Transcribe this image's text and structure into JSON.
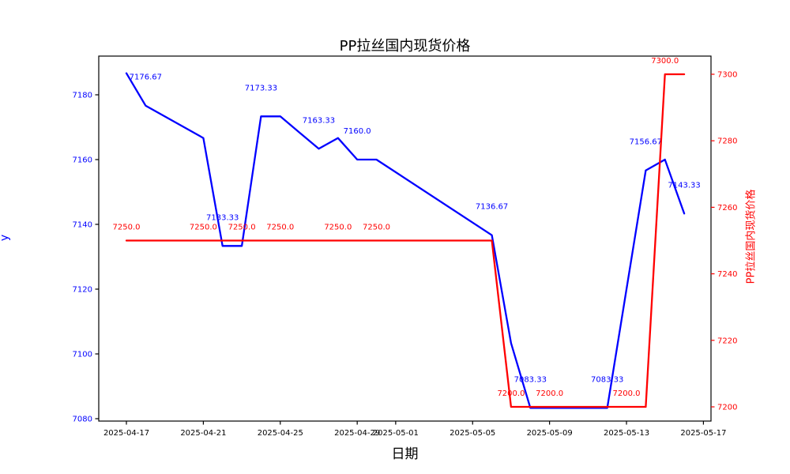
{
  "chart_data": {
    "type": "line",
    "title": "PP拉丝国内现货价格",
    "xlabel": "日期",
    "grid": false,
    "legend": "none",
    "x_axis": {
      "base_date": "2025-04-17",
      "range_days": [
        -1.4376,
        30.394
      ],
      "ticks": [
        {
          "date": "2025-04-17",
          "label": "2025-04-17"
        },
        {
          "date": "2025-04-21",
          "label": "2025-04-21"
        },
        {
          "date": "2025-04-25",
          "label": "2025-04-25"
        },
        {
          "date": "2025-04-29",
          "label": "2025-04-29"
        },
        {
          "date": "2025-05-01",
          "label": "2025-05-01"
        },
        {
          "date": "2025-05-05",
          "label": "2025-05-05"
        },
        {
          "date": "2025-05-09",
          "label": "2025-05-09"
        },
        {
          "date": "2025-05-13",
          "label": "2025-05-13"
        },
        {
          "date": "2025-05-17",
          "label": "2025-05-17"
        }
      ]
    },
    "left_axis": {
      "label": "y",
      "label_color": "#0000ff",
      "tick_color": "#000000",
      "tick_label_color": "#0000ff",
      "ticks": [
        7080,
        7100,
        7120,
        7140,
        7160,
        7180
      ],
      "range": [
        7079.268,
        7191.951
      ]
    },
    "right_axis": {
      "label": "PP拉丝国内现货价格",
      "label_color": "#ff0000",
      "tick_color": "#ff0000",
      "tick_label_color": "#ff0000",
      "ticks": [
        7200,
        7220,
        7240,
        7260,
        7280,
        7300
      ],
      "range": [
        7195.724,
        7305.463
      ]
    },
    "series": [
      {
        "name": "y",
        "axis": "left",
        "color": "#0000ff",
        "points": [
          {
            "date": "2025-04-17",
            "value": 7186.67
          },
          {
            "date": "2025-04-18",
            "value": 7176.67
          },
          {
            "date": "2025-04-21",
            "value": 7166.67
          },
          {
            "date": "2025-04-22",
            "value": 7133.33
          },
          {
            "date": "2025-04-23",
            "value": 7133.33
          },
          {
            "date": "2025-04-24",
            "value": 7173.33
          },
          {
            "date": "2025-04-25",
            "value": 7173.33
          },
          {
            "date": "2025-04-27",
            "value": 7163.33
          },
          {
            "date": "2025-04-28",
            "value": 7166.67
          },
          {
            "date": "2025-04-29",
            "value": 7160.0
          },
          {
            "date": "2025-04-30",
            "value": 7160.0
          },
          {
            "date": "2025-05-06",
            "value": 7136.67
          },
          {
            "date": "2025-05-07",
            "value": 7103.33
          },
          {
            "date": "2025-05-08",
            "value": 7083.33
          },
          {
            "date": "2025-05-12",
            "value": 7083.33
          },
          {
            "date": "2025-05-14",
            "value": 7156.67
          },
          {
            "date": "2025-05-15",
            "value": 7160.0
          },
          {
            "date": "2025-05-16",
            "value": 7143.33
          }
        ],
        "annotations": [
          {
            "date": "2025-04-18",
            "value": 7176.67,
            "text": "7176.67"
          },
          {
            "date": "2025-04-22",
            "value": 7133.33,
            "text": "7133.33"
          },
          {
            "date": "2025-04-24",
            "value": 7173.33,
            "text": "7173.33"
          },
          {
            "date": "2025-04-27",
            "value": 7163.33,
            "text": "7163.33"
          },
          {
            "date": "2025-04-29",
            "value": 7160.0,
            "text": "7160.0"
          },
          {
            "date": "2025-05-06",
            "value": 7136.67,
            "text": "7136.67"
          },
          {
            "date": "2025-05-08",
            "value": 7083.33,
            "text": "7083.33"
          },
          {
            "date": "2025-05-12",
            "value": 7083.33,
            "text": "7083.33"
          },
          {
            "date": "2025-05-14",
            "value": 7156.67,
            "text": "7156.67"
          },
          {
            "date": "2025-05-16",
            "value": 7143.33,
            "text": "7143.33"
          }
        ]
      },
      {
        "name": "PP拉丝国内现货价格",
        "axis": "right",
        "color": "#ff0000",
        "points": [
          {
            "date": "2025-04-17",
            "value": 7250.0
          },
          {
            "date": "2025-05-06",
            "value": 7250.0
          },
          {
            "date": "2025-05-07",
            "value": 7200.0
          },
          {
            "date": "2025-05-14",
            "value": 7200.0
          },
          {
            "date": "2025-05-15",
            "value": 7300.0
          },
          {
            "date": "2025-05-16",
            "value": 7300.0
          }
        ],
        "annotations": [
          {
            "date": "2025-04-17",
            "value": 7250.0,
            "text": "7250.0"
          },
          {
            "date": "2025-04-21",
            "value": 7250.0,
            "text": "7250.0"
          },
          {
            "date": "2025-04-23",
            "value": 7250.0,
            "text": "7250.0"
          },
          {
            "date": "2025-04-25",
            "value": 7250.0,
            "text": "7250.0"
          },
          {
            "date": "2025-04-28",
            "value": 7250.0,
            "text": "7250.0"
          },
          {
            "date": "2025-04-30",
            "value": 7250.0,
            "text": "7250.0"
          },
          {
            "date": "2025-05-07",
            "value": 7200.0,
            "text": "7200.0"
          },
          {
            "date": "2025-05-09",
            "value": 7200.0,
            "text": "7200.0"
          },
          {
            "date": "2025-05-13",
            "value": 7200.0,
            "text": "7200.0"
          },
          {
            "date": "2025-05-15",
            "value": 7300.0,
            "text": "7300.0"
          }
        ]
      }
    ]
  }
}
